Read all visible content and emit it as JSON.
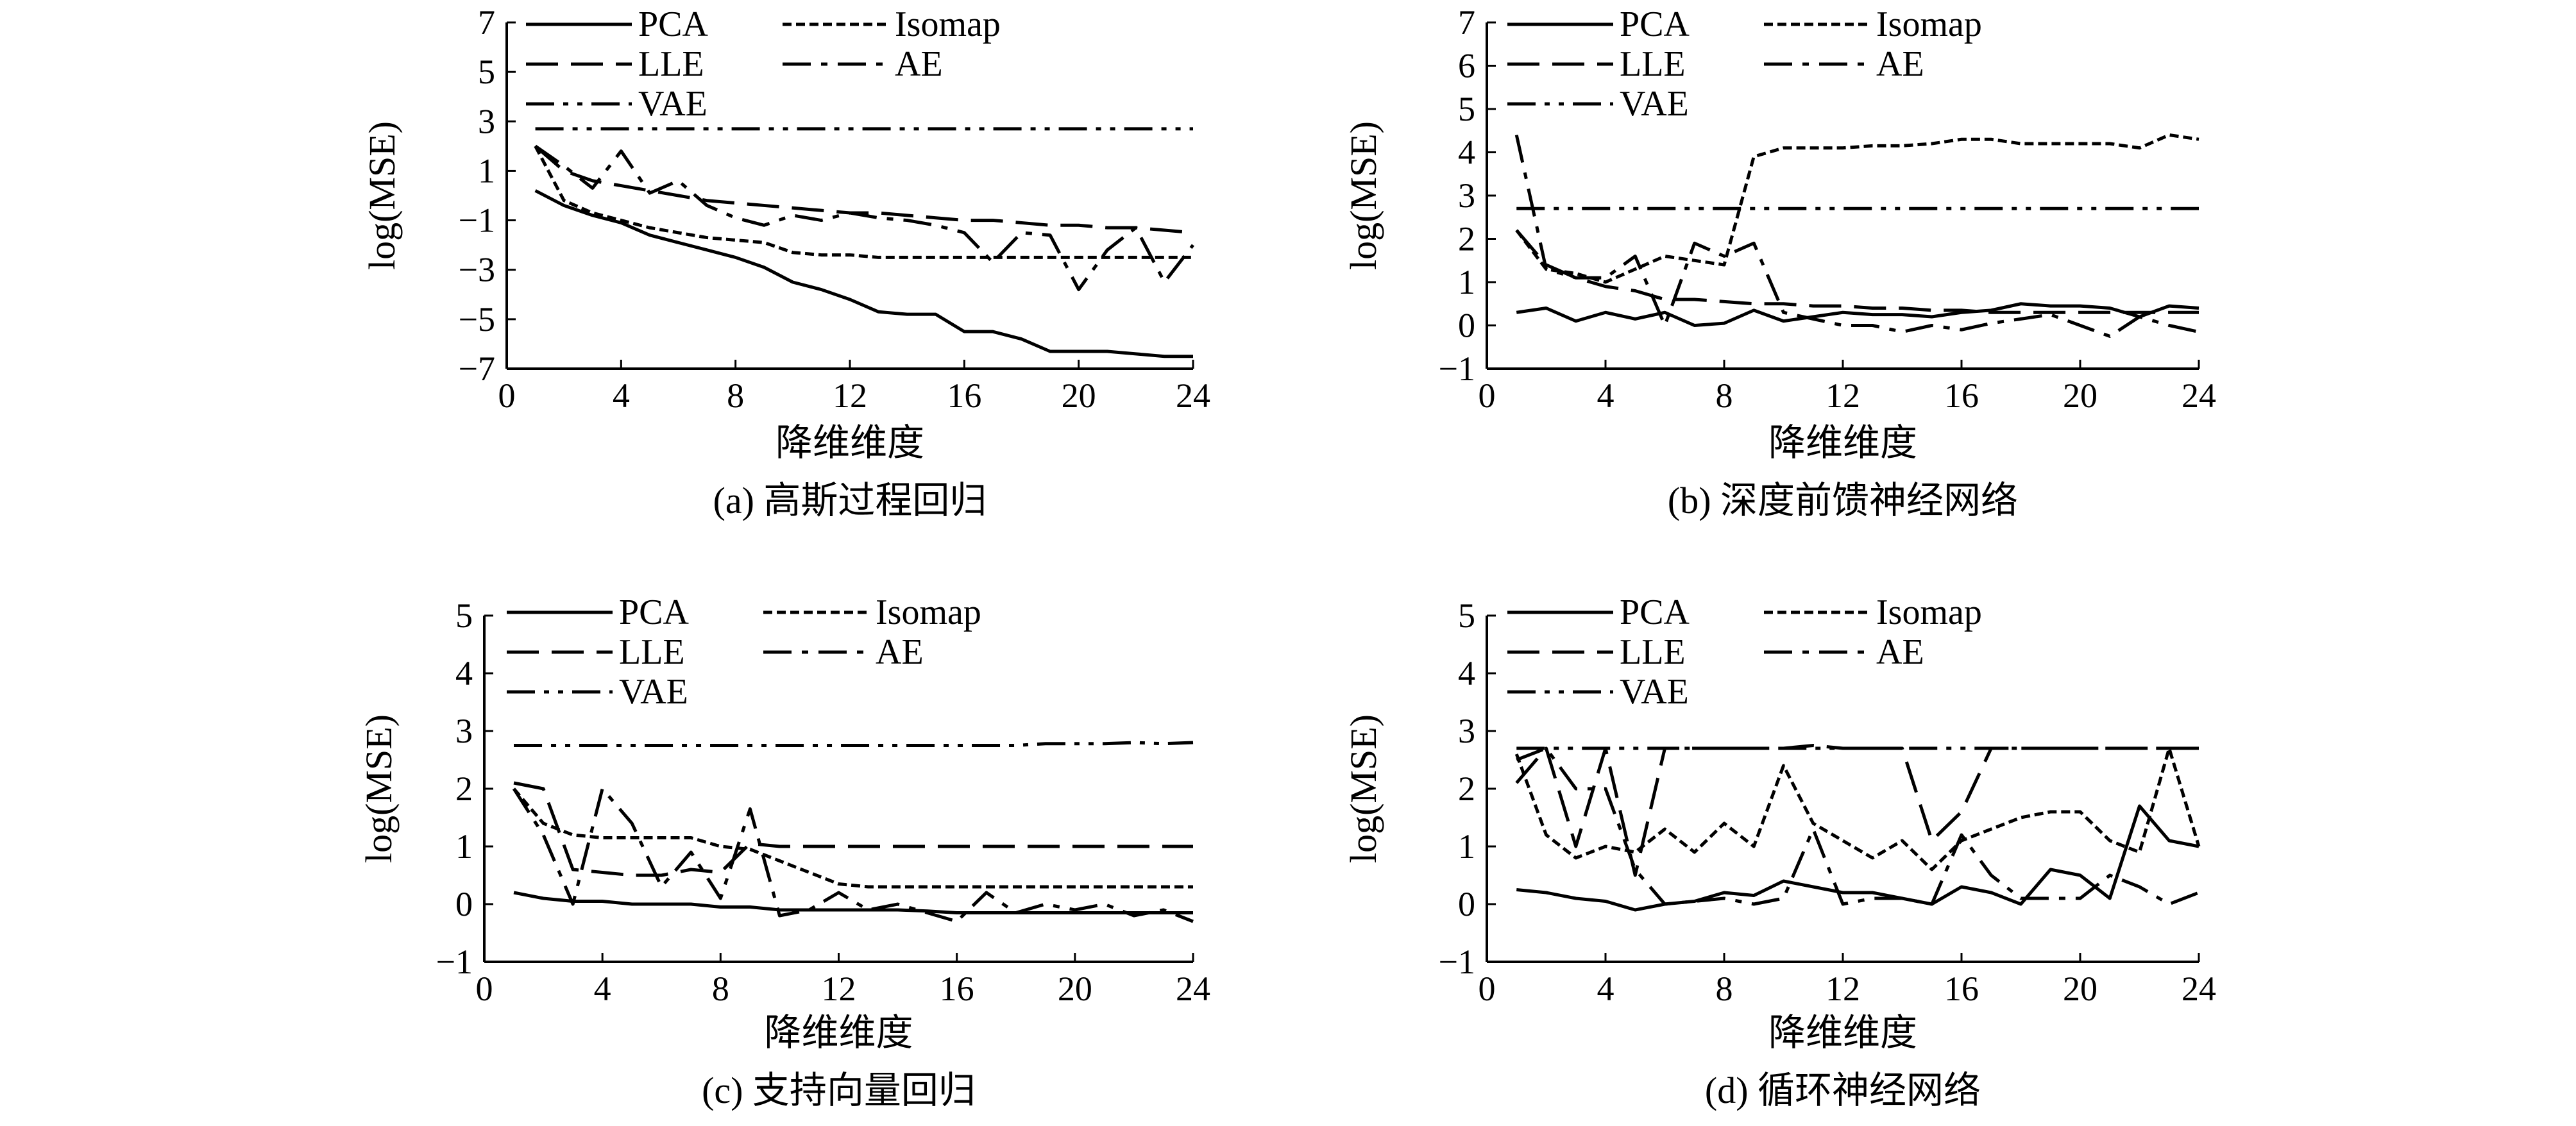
{
  "chart_data": [
    {
      "type": "line",
      "title": "(a) 高斯过程回归",
      "xlabel": "降维维度",
      "ylabel": "log(MSE)",
      "xlim": [
        0,
        24
      ],
      "ylim": [
        -7,
        7
      ],
      "xticks": [
        "0",
        "4",
        "8",
        "12",
        "16",
        "20",
        "24"
      ],
      "yticks": [
        "−7",
        "−5",
        "−3",
        "−1",
        "1",
        "3",
        "5",
        "7"
      ],
      "x": [
        1,
        2,
        3,
        4,
        5,
        6,
        7,
        8,
        9,
        10,
        11,
        12,
        13,
        14,
        15,
        16,
        17,
        18,
        19,
        20,
        21,
        22,
        23,
        24
      ],
      "series": [
        {
          "name": "PCA",
          "style": "solid",
          "values": [
            0.2,
            -0.4,
            -0.8,
            -1.1,
            -1.6,
            -1.9,
            -2.2,
            -2.5,
            -2.9,
            -3.5,
            -3.8,
            -4.2,
            -4.7,
            -4.8,
            -4.8,
            -5.5,
            -5.5,
            -5.8,
            -6.3,
            -6.3,
            -6.3,
            -6.4,
            -6.5,
            -6.5
          ]
        },
        {
          "name": "Isomap",
          "style": "dotted",
          "values": [
            2.0,
            -0.2,
            -0.7,
            -1.0,
            -1.3,
            -1.5,
            -1.7,
            -1.8,
            -1.9,
            -2.3,
            -2.4,
            -2.4,
            -2.5,
            -2.5,
            -2.5,
            -2.5,
            -2.5,
            -2.5,
            -2.5,
            -2.5,
            -2.5,
            -2.5,
            -2.5,
            -2.5
          ]
        },
        {
          "name": "LLE",
          "style": "dashed",
          "values": [
            2.0,
            1.0,
            0.6,
            0.4,
            0.2,
            0.0,
            -0.2,
            -0.3,
            -0.4,
            -0.5,
            -0.6,
            -0.7,
            -0.7,
            -0.8,
            -0.9,
            -1.0,
            -1.0,
            -1.1,
            -1.2,
            -1.2,
            -1.3,
            -1.3,
            -1.4,
            -1.5
          ]
        },
        {
          "name": "AE",
          "style": "dashdot",
          "values": [
            2.0,
            1.2,
            0.3,
            1.8,
            0.1,
            0.6,
            -0.4,
            -0.9,
            -1.2,
            -0.8,
            -1.0,
            -0.7,
            -0.9,
            -1.0,
            -1.2,
            -1.5,
            -2.7,
            -1.5,
            -1.6,
            -3.8,
            -2.2,
            -1.3,
            -3.5,
            -2.0
          ]
        },
        {
          "name": "VAE",
          "style": "dashdotdot",
          "values": [
            2.7,
            2.7,
            2.7,
            2.7,
            2.7,
            2.7,
            2.7,
            2.7,
            2.7,
            2.7,
            2.7,
            2.7,
            2.7,
            2.7,
            2.7,
            2.7,
            2.7,
            2.7,
            2.7,
            2.7,
            2.7,
            2.7,
            2.7,
            2.7
          ]
        }
      ]
    },
    {
      "type": "line",
      "title": "(b) 深度前馈神经网络",
      "xlabel": "降维维度",
      "ylabel": "log(MSE)",
      "xlim": [
        0,
        24
      ],
      "ylim": [
        -1,
        7
      ],
      "xticks": [
        "0",
        "4",
        "8",
        "12",
        "16",
        "20",
        "24"
      ],
      "yticks": [
        "−1",
        "0",
        "1",
        "2",
        "3",
        "4",
        "5",
        "6",
        "7"
      ],
      "x": [
        1,
        2,
        3,
        4,
        5,
        6,
        7,
        8,
        9,
        10,
        11,
        12,
        13,
        14,
        15,
        16,
        17,
        18,
        19,
        20,
        21,
        22,
        23,
        24
      ],
      "series": [
        {
          "name": "PCA",
          "style": "solid",
          "values": [
            0.3,
            0.4,
            0.1,
            0.3,
            0.15,
            0.3,
            0.0,
            0.05,
            0.35,
            0.1,
            0.2,
            0.3,
            0.25,
            0.25,
            0.2,
            0.3,
            0.35,
            0.5,
            0.45,
            0.45,
            0.4,
            0.2,
            0.45,
            0.4
          ]
        },
        {
          "name": "Isomap",
          "style": "dotted",
          "values": [
            2.2,
            1.3,
            1.2,
            1.0,
            1.3,
            1.6,
            1.5,
            1.4,
            3.9,
            4.1,
            4.1,
            4.1,
            4.15,
            4.15,
            4.2,
            4.3,
            4.3,
            4.2,
            4.2,
            4.2,
            4.2,
            4.1,
            4.4,
            4.3
          ]
        },
        {
          "name": "LLE",
          "style": "dashed",
          "values": [
            2.2,
            1.4,
            1.1,
            0.9,
            0.8,
            0.6,
            0.6,
            0.55,
            0.5,
            0.5,
            0.45,
            0.45,
            0.4,
            0.4,
            0.35,
            0.35,
            0.3,
            0.3,
            0.3,
            0.3,
            0.3,
            0.3,
            0.3,
            0.3
          ]
        },
        {
          "name": "AE",
          "style": "dashdot",
          "values": [
            4.4,
            1.3,
            1.1,
            1.1,
            1.6,
            0.0,
            1.9,
            1.6,
            1.9,
            0.3,
            0.15,
            0.0,
            0.0,
            -0.15,
            0.0,
            -0.1,
            0.05,
            0.15,
            0.25,
            0.0,
            -0.25,
            0.2,
            0.0,
            -0.15
          ]
        },
        {
          "name": "VAE",
          "style": "dashdotdot",
          "values": [
            2.7,
            2.7,
            2.7,
            2.7,
            2.7,
            2.7,
            2.7,
            2.7,
            2.7,
            2.7,
            2.7,
            2.7,
            2.7,
            2.7,
            2.7,
            2.7,
            2.7,
            2.7,
            2.7,
            2.7,
            2.7,
            2.7,
            2.7,
            2.7
          ]
        }
      ]
    },
    {
      "type": "line",
      "title": "(c) 支持向量回归",
      "xlabel": "降维维度",
      "ylabel": "log(MSE)",
      "xlim": [
        0,
        24
      ],
      "ylim": [
        -1,
        5
      ],
      "xticks": [
        "0",
        "4",
        "8",
        "12",
        "16",
        "20",
        "24"
      ],
      "yticks": [
        "−1",
        "0",
        "1",
        "2",
        "3",
        "4",
        "5"
      ],
      "x": [
        1,
        2,
        3,
        4,
        5,
        6,
        7,
        8,
        9,
        10,
        11,
        12,
        13,
        14,
        15,
        16,
        17,
        18,
        19,
        20,
        21,
        22,
        23,
        24
      ],
      "series": [
        {
          "name": "PCA",
          "style": "solid",
          "values": [
            0.2,
            0.1,
            0.05,
            0.05,
            0.0,
            0.0,
            0.0,
            -0.05,
            -0.05,
            -0.1,
            -0.1,
            -0.1,
            -0.1,
            -0.1,
            -0.12,
            -0.15,
            -0.15,
            -0.15,
            -0.15,
            -0.15,
            -0.15,
            -0.15,
            -0.15,
            -0.15
          ]
        },
        {
          "name": "Isomap",
          "style": "dotted",
          "values": [
            2.0,
            1.4,
            1.2,
            1.15,
            1.15,
            1.15,
            1.15,
            1.0,
            0.95,
            0.75,
            0.55,
            0.35,
            0.3,
            0.3,
            0.3,
            0.3,
            0.3,
            0.3,
            0.3,
            0.3,
            0.3,
            0.3,
            0.3,
            0.3
          ]
        },
        {
          "name": "LLE",
          "style": "dashed",
          "values": [
            2.1,
            2.0,
            0.6,
            0.55,
            0.5,
            0.5,
            0.6,
            0.55,
            1.05,
            1.0,
            1.0,
            1.0,
            1.0,
            1.0,
            1.0,
            1.0,
            1.0,
            1.0,
            1.0,
            1.0,
            1.0,
            1.0,
            1.0,
            1.0
          ]
        },
        {
          "name": "AE",
          "style": "dashdot",
          "values": [
            2.0,
            1.2,
            0.0,
            2.0,
            1.4,
            0.3,
            0.9,
            0.1,
            1.65,
            -0.2,
            -0.1,
            0.2,
            -0.1,
            0.0,
            -0.15,
            -0.3,
            0.2,
            -0.15,
            0.0,
            -0.1,
            0.0,
            -0.2,
            -0.1,
            -0.3
          ]
        },
        {
          "name": "VAE",
          "style": "dashdotdot",
          "values": [
            2.75,
            2.75,
            2.75,
            2.75,
            2.75,
            2.75,
            2.75,
            2.75,
            2.75,
            2.75,
            2.75,
            2.75,
            2.75,
            2.75,
            2.75,
            2.75,
            2.75,
            2.75,
            2.78,
            2.78,
            2.78,
            2.8,
            2.78,
            2.8
          ]
        }
      ]
    },
    {
      "type": "line",
      "title": "(d) 循环神经网络",
      "xlabel": "降维维度",
      "ylabel": "log(MSE)",
      "xlim": [
        0,
        24
      ],
      "ylim": [
        -1,
        5
      ],
      "xticks": [
        "0",
        "4",
        "8",
        "12",
        "16",
        "20",
        "24"
      ],
      "yticks": [
        "−1",
        "0",
        "1",
        "2",
        "3",
        "4",
        "5"
      ],
      "x": [
        1,
        2,
        3,
        4,
        5,
        6,
        7,
        8,
        9,
        10,
        11,
        12,
        13,
        14,
        15,
        16,
        17,
        18,
        19,
        20,
        21,
        22,
        23,
        24
      ],
      "series": [
        {
          "name": "PCA",
          "style": "solid",
          "values": [
            0.25,
            0.2,
            0.1,
            0.05,
            -0.1,
            0.0,
            0.05,
            0.2,
            0.15,
            0.4,
            0.3,
            0.2,
            0.2,
            0.1,
            0.0,
            0.3,
            0.2,
            0.0,
            0.6,
            0.5,
            0.1,
            1.7,
            1.1,
            1.0
          ]
        },
        {
          "name": "Isomap",
          "style": "dotted",
          "values": [
            2.6,
            1.2,
            0.8,
            1.0,
            0.9,
            1.3,
            0.9,
            1.4,
            1.0,
            2.4,
            1.4,
            1.1,
            0.8,
            1.1,
            0.6,
            1.1,
            1.3,
            1.5,
            1.6,
            1.6,
            1.1,
            0.9,
            2.7,
            1.0
          ]
        },
        {
          "name": "LLE",
          "style": "dashed",
          "values": [
            2.1,
            2.7,
            1.0,
            2.7,
            0.5,
            2.7,
            2.7,
            2.7,
            2.7,
            2.7,
            2.75,
            2.7,
            2.7,
            2.7,
            1.1,
            1.6,
            2.7,
            2.7,
            2.7,
            2.7,
            2.7,
            2.7,
            2.7,
            2.7
          ]
        },
        {
          "name": "AE",
          "style": "dashdot",
          "values": [
            2.5,
            2.7,
            2.0,
            2.0,
            0.6,
            0.0,
            0.05,
            0.1,
            0.0,
            0.1,
            1.3,
            0.0,
            0.1,
            0.1,
            0.0,
            1.2,
            0.5,
            0.1,
            0.1,
            0.1,
            0.5,
            0.3,
            0.0,
            0.2
          ]
        },
        {
          "name": "VAE",
          "style": "dashdotdot",
          "values": [
            2.7,
            2.7,
            2.7,
            2.7,
            2.7,
            2.7,
            2.7,
            2.7,
            2.7,
            2.7,
            2.7,
            2.7,
            2.7,
            2.7,
            2.7,
            2.7,
            2.7,
            2.7,
            2.7,
            2.7,
            2.7,
            2.7,
            2.7,
            2.7
          ]
        }
      ]
    }
  ]
}
